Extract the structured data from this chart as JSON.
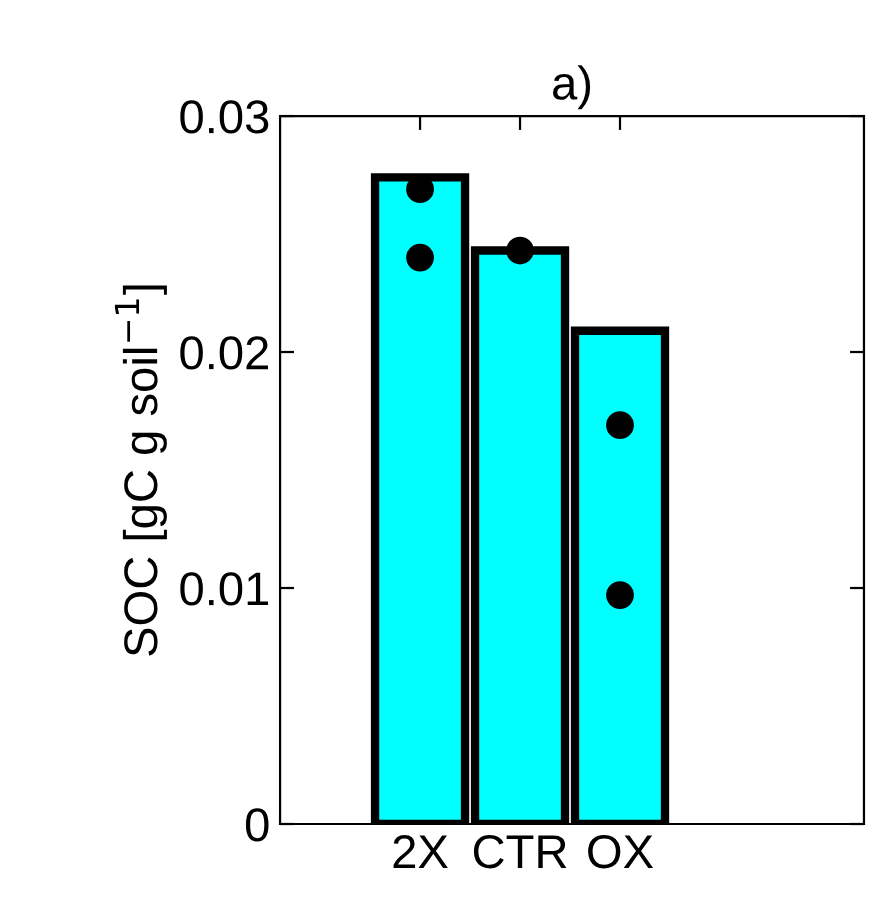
{
  "chart_data": {
    "type": "bar",
    "title": "a)",
    "ylabel": "SOC [gC g soil$^{−1}$]",
    "categories": [
      "2X",
      "CTR",
      "OX"
    ],
    "series": [
      {
        "color": "#00ffff",
        "values": [
          0.0274,
          0.0243,
          0.0209
        ]
      },
      {
        "type": "scatter",
        "color": "#000000",
        "x": [
          "2X",
          "2X",
          "CTR",
          "OX",
          "OX"
        ],
        "values": [
          0.0269,
          0.024,
          0.0243,
          0.0169,
          0.0097
        ]
      }
    ],
    "ylim": [
      0,
      0.03
    ],
    "yticks": [
      0,
      0.01,
      0.02,
      0.03
    ],
    "grid": false,
    "legend": false,
    "marker": "circle"
  }
}
